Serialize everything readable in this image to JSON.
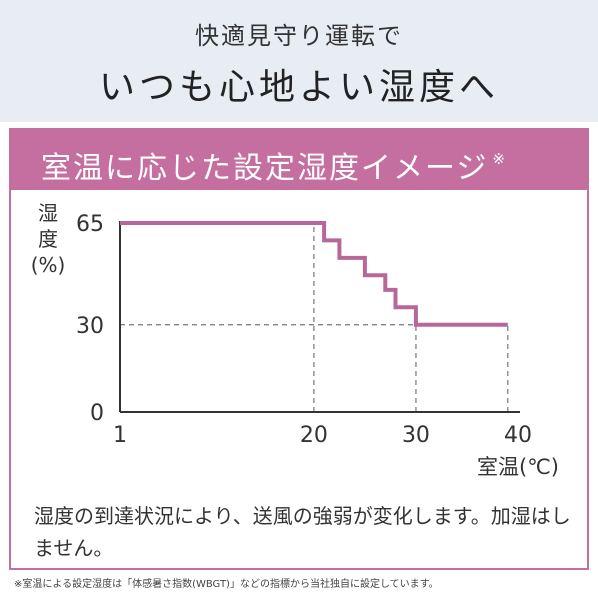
{
  "header": {
    "line1": "快適見守り運転で",
    "line2": "いつも心地よい湿度へ"
  },
  "band": {
    "title": "室温に応じた設定湿度イメージ",
    "mark": "※"
  },
  "chart_data": {
    "type": "line",
    "ylabel": "湿度(%)",
    "xlabel": "室温(℃)",
    "xlim": [
      1,
      40
    ],
    "ylim": [
      0,
      65
    ],
    "x_ticks": [
      "1",
      "20",
      "30",
      "40"
    ],
    "y_ticks": [
      "65",
      "30",
      "0"
    ],
    "grid": false,
    "series": [
      {
        "points": [
          [
            1,
            65
          ],
          [
            21,
            65
          ],
          [
            21,
            59
          ],
          [
            22.5,
            59
          ],
          [
            22.5,
            53
          ],
          [
            25,
            53
          ],
          [
            25,
            47
          ],
          [
            27,
            47
          ],
          [
            27,
            42
          ],
          [
            28,
            42
          ],
          [
            28,
            36
          ],
          [
            30,
            36
          ],
          [
            30,
            30
          ],
          [
            39,
            30
          ]
        ]
      }
    ],
    "reference_lines": [
      {
        "axis": "x",
        "value": 20,
        "y_to": 65
      },
      {
        "axis": "y",
        "value": 30,
        "x_to": 30
      },
      {
        "axis": "x",
        "value": 30,
        "y_to": 30
      },
      {
        "axis": "x",
        "value": 39,
        "y_to": 30
      }
    ],
    "colors": {
      "line": "#b8679a",
      "axis": "#333333",
      "ref": "#777777"
    }
  },
  "description": "湿度の到達状況により、送風の強弱が変化します。加湿はしません。",
  "footnote": "※室温による設定湿度は「体感暑さ指数(WBGT)」などの指標から当社独自に設定しています。"
}
